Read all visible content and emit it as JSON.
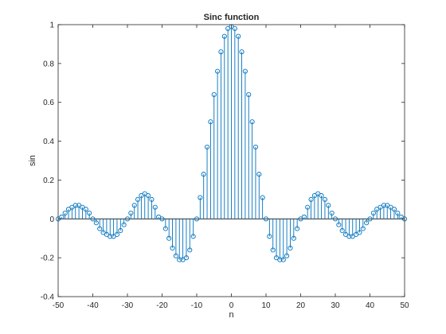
{
  "chart_data": {
    "type": "stem",
    "title": "Sinc function",
    "xlabel": "n",
    "ylabel": "sin",
    "xlim": [
      -50,
      50
    ],
    "ylim": [
      -0.4,
      1
    ],
    "xticks": [
      -50,
      -40,
      -30,
      -20,
      -10,
      0,
      10,
      20,
      30,
      40,
      50
    ],
    "yticks": [
      -0.4,
      -0.2,
      0,
      0.2,
      0.4,
      0.6,
      0.8,
      1
    ],
    "xticklabels": [
      "-50",
      "-40",
      "-30",
      "-20",
      "-10",
      "0",
      "10",
      "20",
      "30",
      "40",
      "50"
    ],
    "yticklabels": [
      "-0.4",
      "-0.2",
      "0",
      "0.2",
      "0.4",
      "0.6",
      "0.8",
      "1"
    ],
    "grid": false,
    "color": "#0072BD",
    "x": [
      -50,
      -49,
      -48,
      -47,
      -46,
      -45,
      -44,
      -43,
      -42,
      -41,
      -40,
      -39,
      -38,
      -37,
      -36,
      -35,
      -34,
      -33,
      -32,
      -31,
      -30,
      -29,
      -28,
      -27,
      -26,
      -25,
      -24,
      -23,
      -22,
      -21,
      -20,
      -19,
      -18,
      -17,
      -16,
      -15,
      -14,
      -13,
      -12,
      -11,
      -10,
      -9,
      -8,
      -7,
      -6,
      -5,
      -4,
      -3,
      -2,
      -1,
      0,
      1,
      2,
      3,
      4,
      5,
      6,
      7,
      8,
      9,
      10,
      11,
      12,
      13,
      14,
      15,
      16,
      17,
      18,
      19,
      20,
      21,
      22,
      23,
      24,
      25,
      26,
      27,
      28,
      29,
      30,
      31,
      32,
      33,
      34,
      35,
      36,
      37,
      38,
      39,
      40,
      41,
      42,
      43,
      44,
      45,
      46,
      47,
      48,
      49,
      50
    ],
    "y": [
      0,
      0.01,
      0.03,
      0.05,
      0.06,
      0.07,
      0.07,
      0.06,
      0.05,
      0.03,
      0,
      -0.02,
      -0.05,
      -0.07,
      -0.08,
      -0.09,
      -0.09,
      -0.08,
      -0.06,
      -0.03,
      0,
      0.03,
      0.07,
      0.1,
      0.12,
      0.13,
      0.12,
      0.1,
      0.06,
      0.01,
      0,
      -0.05,
      -0.1,
      -0.15,
      -0.19,
      -0.21,
      -0.21,
      -0.2,
      -0.16,
      -0.09,
      0,
      0.11,
      0.23,
      0.37,
      0.5,
      0.64,
      0.76,
      0.86,
      0.94,
      0.98,
      0.99,
      0.98,
      0.94,
      0.86,
      0.76,
      0.64,
      0.5,
      0.37,
      0.23,
      0.11,
      0,
      -0.09,
      -0.16,
      -0.2,
      -0.21,
      -0.21,
      -0.19,
      -0.15,
      -0.1,
      -0.05,
      0,
      0.01,
      0.06,
      0.1,
      0.12,
      0.13,
      0.12,
      0.1,
      0.07,
      0.03,
      0,
      -0.03,
      -0.06,
      -0.08,
      -0.09,
      -0.09,
      -0.08,
      -0.07,
      -0.05,
      -0.02,
      0,
      0.03,
      0.05,
      0.06,
      0.07,
      0.07,
      0.06,
      0.05,
      0.03,
      0.01,
      0
    ]
  }
}
